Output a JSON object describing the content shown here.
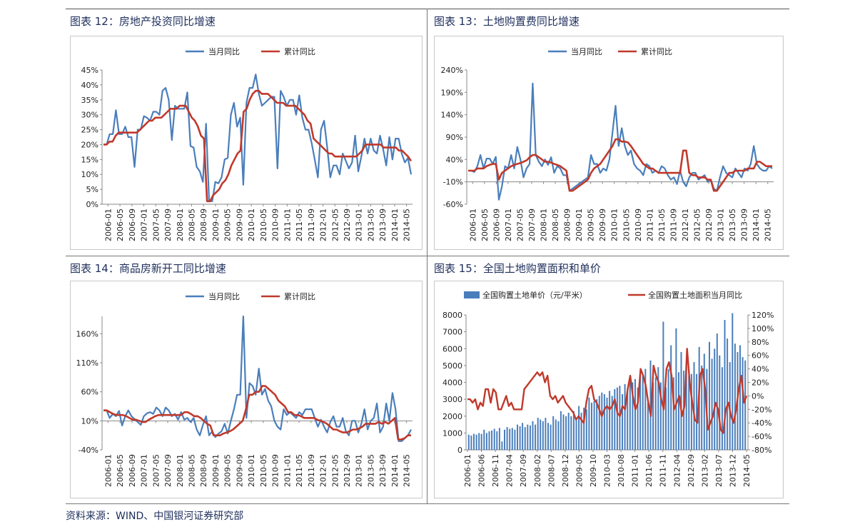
{
  "titles": {
    "p12": "图表 12：房地产投资同比增速",
    "p13": "图表 13：土地购置费同比增速",
    "p14": "图表 14：商品房新开工同比增速",
    "p15": "图表 15：全国土地购置面积和单价"
  },
  "source": "资料来源：WIND、中国银河证券研究部",
  "chart_data": [
    {
      "id": "p12",
      "type": "line",
      "y_ticks": [
        "0%",
        "5%",
        "10%",
        "15%",
        "20%",
        "25%",
        "30%",
        "35%",
        "40%",
        "45%"
      ],
      "ylim": [
        0,
        45
      ],
      "x_ticks": [
        "2006-01",
        "2006-05",
        "2006-09",
        "2007-01",
        "2007-05",
        "2007-09",
        "2008-01",
        "2008-05",
        "2008-09",
        "2009-01",
        "2009-05",
        "2009-09",
        "2010-01",
        "2010-05",
        "2010-09",
        "2011-01",
        "2011-05",
        "2011-09",
        "2012-01",
        "2012-05",
        "2012-09",
        "2013-01",
        "2013-05",
        "2013-09",
        "2014-01",
        "2014-05"
      ],
      "series": [
        {
          "name": "当月同比",
          "color": "#4a7ebb",
          "values": [
            20,
            20,
            23.5,
            23.5,
            31.5,
            23.5,
            23.5,
            26,
            22.5,
            22.5,
            12.5,
            25,
            25,
            29.5,
            29,
            28,
            31,
            31,
            30,
            38,
            39,
            35,
            21.5,
            33,
            32,
            32,
            32,
            37.5,
            19.5,
            19,
            12.5,
            11,
            7.5,
            27,
            1,
            1,
            7.5,
            7,
            9,
            15,
            15.5,
            30,
            34,
            26,
            29,
            6.5,
            34,
            39,
            39,
            43.5,
            37,
            33,
            34,
            35,
            36,
            36,
            12,
            38,
            36,
            33,
            35,
            35,
            30,
            36.5,
            29,
            25,
            25,
            20.5,
            15,
            9,
            25,
            28,
            19,
            9,
            13,
            13,
            10,
            17,
            14.5,
            12,
            14,
            23,
            11,
            16,
            22,
            17,
            22,
            18,
            17,
            23,
            18.5,
            13,
            22.5,
            15,
            22,
            22,
            17,
            14,
            15.5,
            10
          ]
        },
        {
          "name": "累计同比",
          "color": "#c0392b",
          "values": [
            20,
            20,
            21,
            21,
            23,
            24,
            24,
            24,
            24,
            24,
            24,
            24,
            25,
            26,
            27,
            28,
            28,
            29,
            29,
            29,
            30,
            31,
            32,
            32,
            32,
            33,
            33,
            33,
            31,
            29,
            28,
            26,
            23,
            22,
            1,
            1,
            3,
            4,
            5,
            7,
            8,
            10,
            13,
            15,
            17,
            18,
            31,
            32,
            35,
            37,
            38,
            38,
            37,
            37,
            37,
            36,
            35,
            34,
            34,
            34,
            33,
            33,
            33,
            33,
            32,
            31,
            30,
            28,
            27,
            22,
            21,
            20,
            19,
            18,
            17,
            17,
            16,
            16,
            16,
            16,
            16,
            16,
            16,
            16,
            17,
            18,
            20,
            20,
            20,
            20,
            20,
            20,
            19,
            19,
            19,
            19,
            19,
            18,
            18,
            17,
            16,
            14.5
          ]
        }
      ]
    },
    {
      "id": "p13",
      "type": "line",
      "y_ticks": [
        "-60%",
        "-10%",
        "40%",
        "90%",
        "140%",
        "190%",
        "240%"
      ],
      "ylim": [
        -60,
        240
      ],
      "x_ticks": [
        "2006-01",
        "2006-05",
        "2006-09",
        "2007-01",
        "2007-05",
        "2007-09",
        "2008-01",
        "2008-05",
        "2008-09",
        "2009-01",
        "2009-05",
        "2009-09",
        "2010-01",
        "2010-05",
        "2010-09",
        "2011-01",
        "2011-05",
        "2011-09",
        "2012-01",
        "2012-05",
        "2012-09",
        "2013-01",
        "2013-05",
        "2013-09",
        "2014-01",
        "2014-05"
      ],
      "series": [
        {
          "name": "当月同比",
          "color": "#4a7ebb",
          "values": [
            15,
            15,
            12,
            25,
            50,
            20,
            42,
            42,
            30,
            46,
            -50,
            -20,
            25,
            20,
            50,
            20,
            68,
            40,
            0,
            20,
            30,
            210,
            50,
            35,
            25,
            40,
            28,
            45,
            10,
            25,
            20,
            5,
            5,
            -30,
            -25,
            -20,
            -15,
            -10,
            -5,
            0,
            50,
            30,
            30,
            10,
            20,
            15,
            40,
            100,
            160,
            70,
            110,
            70,
            50,
            60,
            30,
            20,
            15,
            5,
            30,
            25,
            10,
            15,
            10,
            25,
            20,
            5,
            -5,
            0,
            -15,
            15,
            -10,
            -20,
            0,
            10,
            10,
            -5,
            0,
            5,
            -10,
            -5,
            -25,
            -30,
            0,
            25,
            10,
            5,
            0,
            20,
            10,
            0,
            20,
            15,
            30,
            70,
            30,
            20,
            15,
            15,
            25,
            20
          ]
        },
        {
          "name": "累计同比",
          "color": "#c0392b",
          "values": [
            15,
            15,
            15,
            20,
            20,
            20,
            25,
            28,
            30,
            30,
            -5,
            10,
            15,
            20,
            25,
            28,
            30,
            32,
            35,
            38,
            45,
            50,
            50,
            45,
            40,
            35,
            35,
            33,
            30,
            28,
            25,
            20,
            15,
            -30,
            -30,
            -25,
            -20,
            -15,
            -10,
            -5,
            10,
            20,
            25,
            30,
            40,
            50,
            60,
            70,
            85,
            85,
            80,
            80,
            78,
            70,
            60,
            50,
            40,
            30,
            25,
            20,
            20,
            15,
            10,
            10,
            10,
            10,
            10,
            10,
            10,
            10,
            60,
            60,
            10,
            5,
            5,
            0,
            0,
            0,
            -5,
            -5,
            -30,
            -30,
            -20,
            -10,
            0,
            10,
            10,
            15,
            15,
            15,
            15,
            20,
            20,
            20,
            35,
            35,
            30,
            25,
            25,
            25
          ]
        }
      ]
    },
    {
      "id": "p14",
      "type": "line",
      "y_ticks": [
        "-40%",
        "10%",
        "60%",
        "110%",
        "160%"
      ],
      "ylim": [
        -40,
        190
      ],
      "x_ticks": [
        "2006-01",
        "2006-05",
        "2006-09",
        "2007-01",
        "2007-05",
        "2007-09",
        "2008-01",
        "2008-05",
        "2008-09",
        "2009-01",
        "2009-05",
        "2009-09",
        "2010-01",
        "2010-05",
        "2010-09",
        "2011-01",
        "2011-05",
        "2011-09",
        "2012-01",
        "2012-05",
        "2012-09",
        "2013-01",
        "2013-05",
        "2013-09",
        "2014-01",
        "2014-05"
      ],
      "series": [
        {
          "name": "当月同比",
          "color": "#4a7ebb",
          "values": [
            28,
            28,
            15,
            22,
            18,
            27,
            2,
            18,
            28,
            18,
            13,
            8,
            3,
            18,
            23,
            25,
            22,
            33,
            28,
            18,
            33,
            28,
            18,
            22,
            12,
            25,
            12,
            15,
            8,
            15,
            -5,
            -15,
            3,
            18,
            -15,
            -8,
            -18,
            -12,
            -8,
            5,
            -12,
            10,
            30,
            55,
            55,
            190,
            15,
            75,
            70,
            55,
            100,
            55,
            65,
            45,
            35,
            10,
            0,
            -5,
            30,
            20,
            25,
            20,
            15,
            25,
            20,
            30,
            30,
            30,
            15,
            0,
            12,
            0,
            -10,
            8,
            18,
            0,
            0,
            15,
            -8,
            -15,
            10,
            10,
            -10,
            5,
            30,
            -5,
            10,
            15,
            40,
            -10,
            0,
            40,
            10,
            58,
            30,
            -25,
            -25,
            -20,
            -15,
            -5
          ]
        },
        {
          "name": "累计同比",
          "color": "#c0392b",
          "values": [
            28,
            28,
            25,
            22,
            20,
            20,
            20,
            18,
            15,
            12,
            12,
            10,
            8,
            8,
            12,
            15,
            18,
            20,
            20,
            20,
            20,
            20,
            20,
            20,
            20,
            25,
            25,
            22,
            18,
            18,
            15,
            10,
            5,
            2,
            -15,
            -15,
            -15,
            -12,
            -10,
            -8,
            -5,
            0,
            5,
            10,
            30,
            55,
            55,
            60,
            60,
            70,
            70,
            65,
            60,
            55,
            45,
            40,
            35,
            25,
            25,
            20,
            20,
            18,
            15,
            15,
            15,
            15,
            12,
            10,
            8,
            5,
            0,
            -5,
            -5,
            -8,
            -10,
            -10,
            -8,
            -5,
            -5,
            -3,
            0,
            5,
            5,
            5,
            5,
            8,
            5,
            8,
            5,
            10,
            15,
            -22,
            -22,
            -20,
            -15,
            -15
          ]
        }
      ]
    },
    {
      "id": "p15",
      "type": "bar+line",
      "y_left_ticks": [
        "0",
        "1000",
        "2000",
        "3000",
        "4000",
        "5000",
        "6000",
        "7000",
        "8000"
      ],
      "ylim_left": [
        0,
        8000
      ],
      "y_right_ticks": [
        "-80%",
        "-60%",
        "-40%",
        "-20%",
        "0%",
        "20%",
        "40%",
        "60%",
        "80%",
        "100%",
        "120%"
      ],
      "ylim_right": [
        -80,
        120
      ],
      "x_ticks": [
        "2006-01",
        "2006-06",
        "2006-11",
        "2007-04",
        "2007-09",
        "2008-02",
        "2008-07",
        "2008-12",
        "2009-05",
        "2009-10",
        "2010-03",
        "2010-08",
        "2011-01",
        "2011-06",
        "2011-11",
        "2012-04",
        "2012-09",
        "2013-02",
        "2013-07",
        "2013-12",
        "2014-05"
      ],
      "series": [
        {
          "name": "全国购置土地单价（元/平米）",
          "axis": "left",
          "color": "#4a7ebb",
          "values": [
            900,
            850,
            950,
            900,
            1000,
            950,
            1200,
            1000,
            1100,
            1150,
            1250,
            1100,
            1300,
            500,
            1200,
            1350,
            1250,
            1300,
            1200,
            1500,
            1400,
            1600,
            1350,
            1500,
            1450,
            1700,
            1500,
            1900,
            1800,
            1700,
            1900,
            1600,
            1500,
            2000,
            1800,
            1700,
            2300,
            2100,
            2000,
            2200,
            2000,
            2300,
            1900,
            2600,
            2200,
            2500,
            2400,
            3100,
            2800,
            2900,
            3000,
            3200,
            3400,
            3300,
            3100,
            3500,
            3200,
            3600,
            3700,
            3800,
            3300,
            3900,
            3500,
            4100,
            4000,
            4200,
            3700,
            4500,
            4400,
            4800,
            2800,
            5300,
            4000,
            4300,
            4900,
            4000,
            7600,
            3700,
            4800,
            6200,
            4300,
            7200,
            4600,
            5800,
            4700,
            5000,
            4400,
            4500,
            5200,
            4500,
            6100,
            5000,
            5700,
            4800,
            6400,
            5400,
            6000,
            6900,
            5600,
            4900,
            7700,
            6600,
            5200,
            8100,
            6300,
            5800,
            6200,
            5500,
            5300
          ]
        },
        {
          "name": "全国购置土地面积当月同比",
          "axis": "right",
          "color": "#c0392b",
          "values": [
            -5,
            -5,
            -10,
            -5,
            -20,
            -10,
            -15,
            10,
            10,
            -10,
            10,
            5,
            -20,
            -20,
            -10,
            0,
            -15,
            -10,
            -20,
            -20,
            -20,
            -20,
            10,
            15,
            20,
            25,
            30,
            35,
            30,
            35,
            20,
            30,
            0,
            -5,
            0,
            -10,
            -5,
            0,
            -10,
            -15,
            -20,
            -25,
            -35,
            -30,
            -35,
            -40,
            -10,
            10,
            15,
            -5,
            -10,
            -20,
            -30,
            -20,
            -15,
            -20,
            -15,
            -5,
            -25,
            -30,
            -15,
            -20,
            10,
            30,
            0,
            -20,
            -10,
            40,
            30,
            15,
            -10,
            -30,
            45,
            30,
            20,
            -5,
            -20,
            40,
            50,
            30,
            -20,
            -10,
            0,
            -30,
            -15,
            70,
            20,
            -10,
            -35,
            -40,
            30,
            40,
            10,
            -50,
            -40,
            -30,
            -10,
            -20,
            -50,
            -55,
            -20,
            -10,
            -30,
            -40,
            -20,
            10,
            30,
            -10,
            0
          ]
        }
      ]
    }
  ]
}
